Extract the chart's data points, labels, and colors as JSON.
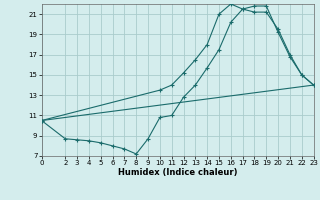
{
  "xlabel": "Humidex (Indice chaleur)",
  "bg_color": "#d4eded",
  "grid_color": "#aacccc",
  "line_color": "#1a6b6b",
  "xlim": [
    0,
    23
  ],
  "ylim": [
    7,
    22
  ],
  "yticks": [
    7,
    9,
    11,
    13,
    15,
    17,
    19,
    21
  ],
  "xticks": [
    0,
    2,
    3,
    4,
    5,
    6,
    7,
    8,
    9,
    10,
    11,
    12,
    13,
    14,
    15,
    16,
    17,
    18,
    19,
    20,
    21,
    22,
    23
  ],
  "line1_x": [
    0,
    10,
    11,
    12,
    13,
    14,
    15,
    16,
    17,
    18,
    19,
    20,
    21,
    22,
    23
  ],
  "line1_y": [
    10.5,
    13.5,
    14.0,
    15.2,
    16.5,
    18.0,
    21.0,
    22.0,
    21.5,
    21.2,
    21.2,
    19.5,
    17.0,
    15.0,
    14.0
  ],
  "line2_x": [
    0,
    2,
    3,
    4,
    5,
    6,
    7,
    8,
    9,
    10,
    11,
    12,
    13,
    14,
    15,
    16,
    17,
    18,
    19,
    20,
    21,
    22,
    23
  ],
  "line2_y": [
    10.5,
    8.7,
    8.6,
    8.5,
    8.3,
    8.0,
    7.7,
    7.2,
    8.7,
    10.8,
    11.0,
    12.8,
    14.0,
    15.7,
    17.5,
    20.2,
    21.5,
    21.8,
    21.8,
    19.2,
    16.8,
    15.0,
    14.0
  ],
  "line3_x": [
    0,
    23
  ],
  "line3_y": [
    10.5,
    14.0
  ]
}
